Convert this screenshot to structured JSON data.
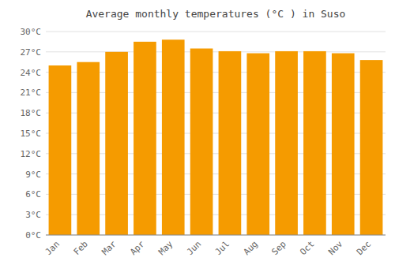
{
  "chart_data": {
    "type": "bar",
    "title": "Average monthly temperatures (°C ) in Suso",
    "categories": [
      "Jan",
      "Feb",
      "Mar",
      "Apr",
      "May",
      "Jun",
      "Jul",
      "Aug",
      "Sep",
      "Oct",
      "Nov",
      "Dec"
    ],
    "values": [
      25.0,
      25.5,
      27.0,
      28.5,
      28.8,
      27.5,
      27.1,
      26.8,
      27.1,
      27.1,
      26.8,
      25.8
    ],
    "color": "#F59B00",
    "ylim": [
      0,
      30
    ],
    "yticks": [
      {
        "value": 0,
        "label": "0°C"
      },
      {
        "value": 3,
        "label": "3°C"
      },
      {
        "value": 6,
        "label": "6°C"
      },
      {
        "value": 9,
        "label": "9°C"
      },
      {
        "value": 12,
        "label": "12°C"
      },
      {
        "value": 15,
        "label": "15°C"
      },
      {
        "value": 18,
        "label": "18°C"
      },
      {
        "value": 21,
        "label": "21°C"
      },
      {
        "value": 24,
        "label": "24°C"
      },
      {
        "value": 27,
        "label": "27°C"
      },
      {
        "value": 30,
        "label": "30°C"
      }
    ],
    "grid": true
  }
}
